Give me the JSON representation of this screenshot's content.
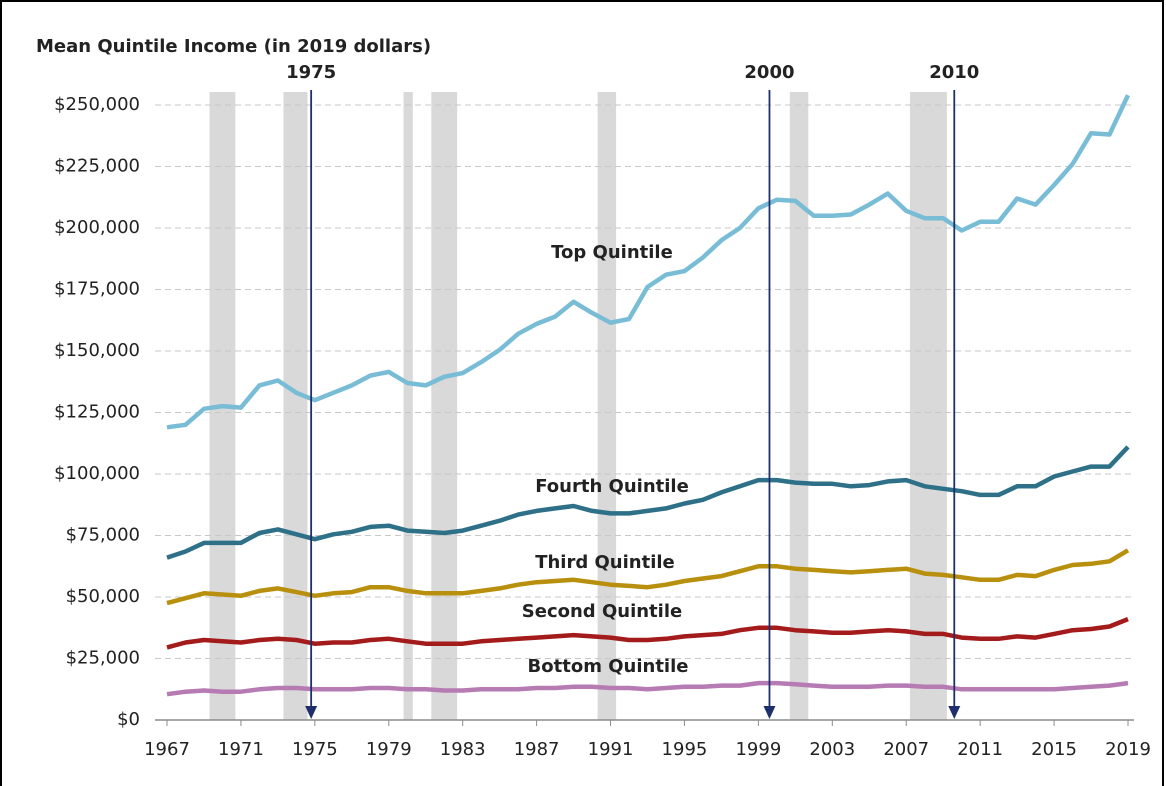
{
  "chart_data": {
    "type": "line",
    "title": "Mean Quintile Income (in 2019 dollars)",
    "x": [
      1967,
      1968,
      1969,
      1970,
      1971,
      1972,
      1973,
      1974,
      1975,
      1976,
      1977,
      1978,
      1979,
      1980,
      1981,
      1982,
      1983,
      1984,
      1985,
      1986,
      1987,
      1988,
      1989,
      1990,
      1991,
      1992,
      1993,
      1994,
      1995,
      1996,
      1997,
      1998,
      1999,
      2000,
      2001,
      2002,
      2003,
      2004,
      2005,
      2006,
      2007,
      2008,
      2009,
      2010,
      2011,
      2012,
      2013,
      2014,
      2015,
      2016,
      2017,
      2018,
      2019
    ],
    "series": [
      {
        "name": "Top Quintile",
        "color": "#78bcd6",
        "values": [
          119000,
          120000,
          126500,
          127600,
          127000,
          136000,
          138000,
          133000,
          130000,
          133000,
          136000,
          140000,
          141500,
          137000,
          136000,
          139500,
          141000,
          145500,
          150500,
          157000,
          161000,
          164000,
          170000,
          165500,
          161500,
          163000,
          176000,
          181000,
          182500,
          188000,
          195000,
          200000,
          208000,
          211500,
          211000,
          205000,
          205000,
          205500,
          209500,
          214000,
          207000,
          204000,
          204000,
          199000,
          202500,
          202500,
          212000,
          209500,
          217500,
          226000,
          238500,
          238000,
          254000
        ]
      },
      {
        "name": "Fourth Quintile",
        "color": "#2e7088",
        "values": [
          66000,
          68500,
          72000,
          72000,
          72000,
          76000,
          77500,
          75500,
          73500,
          75500,
          76500,
          78500,
          79000,
          77000,
          76500,
          76000,
          77000,
          79000,
          81000,
          83500,
          85000,
          86000,
          87000,
          85000,
          84000,
          84000,
          85000,
          86000,
          88000,
          89500,
          92500,
          95000,
          97500,
          97500,
          96500,
          96000,
          96000,
          95000,
          95500,
          97000,
          97500,
          95000,
          94000,
          93000,
          91500,
          91500,
          95000,
          95000,
          99000,
          101000,
          103000,
          103000,
          111000
        ]
      },
      {
        "name": "Third Quintile",
        "color": "#b8900e",
        "values": [
          47500,
          49500,
          51500,
          51000,
          50500,
          52500,
          53500,
          52000,
          50500,
          51500,
          52000,
          54000,
          54000,
          52500,
          51500,
          51500,
          51500,
          52500,
          53500,
          55000,
          56000,
          56500,
          57000,
          56000,
          55000,
          54500,
          54000,
          55000,
          56500,
          57500,
          58500,
          60500,
          62500,
          62500,
          61500,
          61000,
          60500,
          60000,
          60500,
          61000,
          61500,
          59500,
          59000,
          58000,
          57000,
          57000,
          59000,
          58500,
          61000,
          63000,
          63500,
          64500,
          69000
        ]
      },
      {
        "name": "Second Quintile",
        "color": "#a31b1b",
        "values": [
          29500,
          31500,
          32500,
          32000,
          31500,
          32500,
          33000,
          32500,
          31000,
          31500,
          31500,
          32500,
          33000,
          32000,
          31000,
          31000,
          31000,
          32000,
          32500,
          33000,
          33500,
          34000,
          34500,
          34000,
          33500,
          32500,
          32500,
          33000,
          34000,
          34500,
          35000,
          36500,
          37500,
          37500,
          36500,
          36000,
          35500,
          35500,
          36000,
          36500,
          36000,
          35000,
          35000,
          33500,
          33000,
          33000,
          34000,
          33500,
          35000,
          36500,
          37000,
          38000,
          41000
        ]
      },
      {
        "name": "Bottom Quintile",
        "color": "#b77bb4",
        "values": [
          10500,
          11500,
          12000,
          11500,
          11500,
          12500,
          13000,
          13000,
          12500,
          12500,
          12500,
          13000,
          13000,
          12500,
          12500,
          12000,
          12000,
          12500,
          12500,
          12500,
          13000,
          13000,
          13500,
          13500,
          13000,
          13000,
          12500,
          13000,
          13500,
          13500,
          14000,
          14000,
          15000,
          15000,
          14500,
          14000,
          13500,
          13500,
          13500,
          14000,
          14000,
          13500,
          13500,
          12500,
          12500,
          12500,
          12500,
          12500,
          12500,
          13000,
          13500,
          14000,
          15000
        ]
      }
    ],
    "xlim": [
      1967,
      2019
    ],
    "xticks": [
      1967,
      1971,
      1975,
      1979,
      1983,
      1987,
      1991,
      1995,
      1999,
      2003,
      2007,
      2011,
      2015,
      2019
    ],
    "ylim": [
      0,
      250000
    ],
    "yticks": [
      {
        "value": 0,
        "label": "$0"
      },
      {
        "value": 25000,
        "label": "$25,000"
      },
      {
        "value": 50000,
        "label": "$50,000"
      },
      {
        "value": 75000,
        "label": "$75,000"
      },
      {
        "value": 100000,
        "label": "$100,000"
      },
      {
        "value": 125000,
        "label": "$125,000"
      },
      {
        "value": 150000,
        "label": "$150,000"
      },
      {
        "value": 175000,
        "label": "$175,000"
      },
      {
        "value": 200000,
        "label": "$200,000"
      },
      {
        "value": 225000,
        "label": "$225,000"
      },
      {
        "value": 250000,
        "label": "$250,000"
      }
    ],
    "grid": true,
    "recessions": [
      [
        1969.3,
        1970.7
      ],
      [
        1973.3,
        1974.6
      ],
      [
        1979.8,
        1980.3
      ],
      [
        1981.3,
        1982.7
      ],
      [
        1990.3,
        1991.3
      ],
      [
        2000.7,
        2001.7
      ],
      [
        2007.2,
        2009.2
      ]
    ],
    "annotations": [
      {
        "text": "1975",
        "x": 1974.8
      },
      {
        "text": "2000",
        "x": 1999.6
      },
      {
        "text": "2010",
        "x": 2009.6
      }
    ]
  }
}
